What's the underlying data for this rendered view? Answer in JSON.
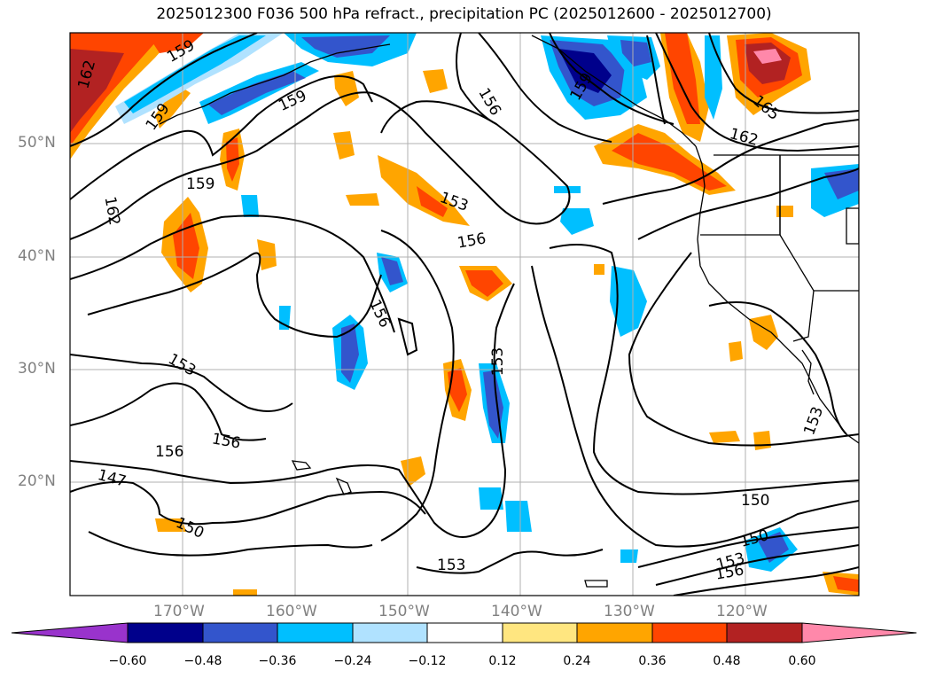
{
  "title": "2025012300 F036 500 hPa refract., precipitation PC (2025012600 - 2025012700)",
  "lat_labels": [
    "50°N",
    "40°N",
    "30°N",
    "20°N"
  ],
  "lon_labels": [
    "170°W",
    "160°W",
    "150°W",
    "140°W",
    "130°W",
    "120°W"
  ],
  "contour_labels": [
    "162",
    "159",
    "159",
    "159",
    "159",
    "156",
    "153",
    "156",
    "156",
    "153",
    "156",
    "153",
    "156",
    "147",
    "150",
    "162",
    "165",
    "159",
    "150",
    "150",
    "153",
    "153",
    "156",
    "153",
    "162"
  ],
  "colorbar": {
    "ticks": [
      "−0.60",
      "−0.48",
      "−0.36",
      "−0.24",
      "−0.12",
      "0.12",
      "0.24",
      "0.36",
      "0.48",
      "0.60"
    ],
    "colors": [
      "#9933cc",
      "#00008b",
      "#3355cc",
      "#00bfff",
      "#b0e2ff",
      "#ffffff",
      "#ffe680",
      "#ffa500",
      "#ff4500",
      "#b22222",
      "#ff88aa"
    ]
  }
}
